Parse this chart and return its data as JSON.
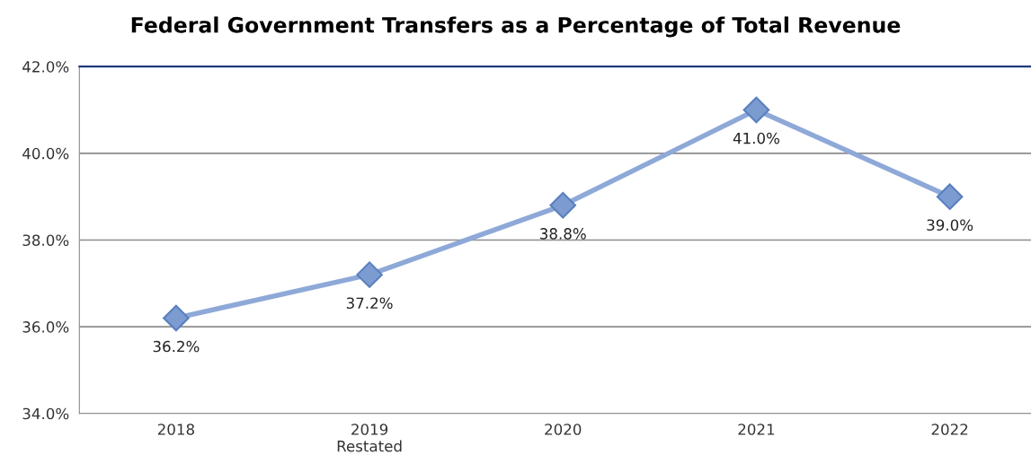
{
  "chart_data": {
    "type": "line",
    "title": "Federal Government Transfers as a Percentage of Total Revenue",
    "categories": [
      "2018",
      "2019\nRestated",
      "2020",
      "2021",
      "2022"
    ],
    "series": [
      {
        "color": "#8ea9d8",
        "values": [
          36.2,
          37.2,
          38.8,
          41.0,
          39.0
        ],
        "value_labels": [
          "36.2%",
          "37.2%",
          "38.8%",
          "41.0%",
          "39.0%"
        ]
      }
    ],
    "ylim": [
      34,
      42
    ],
    "yticks": [
      {
        "value": 34,
        "label": "34.0%"
      },
      {
        "value": 36,
        "label": "36.0%"
      },
      {
        "value": 38,
        "label": "38.0%"
      },
      {
        "value": 40,
        "label": "40.0%"
      },
      {
        "value": 42,
        "label": "42.0%"
      }
    ],
    "grid": "y",
    "marker": "diamond",
    "line_style": "solid",
    "legend": false
  }
}
